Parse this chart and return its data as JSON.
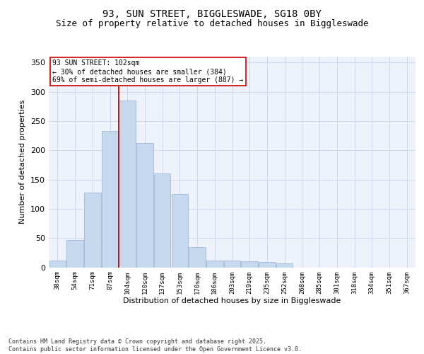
{
  "title1": "93, SUN STREET, BIGGLESWADE, SG18 0BY",
  "title2": "Size of property relative to detached houses in Biggleswade",
  "xlabel": "Distribution of detached houses by size in Biggleswade",
  "ylabel": "Number of detached properties",
  "bar_labels": [
    "38sqm",
    "54sqm",
    "71sqm",
    "87sqm",
    "104sqm",
    "120sqm",
    "137sqm",
    "153sqm",
    "170sqm",
    "186sqm",
    "203sqm",
    "219sqm",
    "235sqm",
    "252sqm",
    "268sqm",
    "285sqm",
    "301sqm",
    "318sqm",
    "334sqm",
    "351sqm",
    "367sqm"
  ],
  "bar_values": [
    12,
    47,
    128,
    233,
    285,
    212,
    160,
    125,
    34,
    12,
    11,
    10,
    9,
    7,
    0,
    0,
    0,
    0,
    0,
    0,
    0
  ],
  "bar_color": "#c5d8ed",
  "bar_edgecolor": "#a0b8d8",
  "bg_color": "#eef2fb",
  "grid_color": "#d0d8ee",
  "vline_color": "#cc0000",
  "annotation_text": "93 SUN STREET: 102sqm\n← 30% of detached houses are smaller (384)\n69% of semi-detached houses are larger (887) →",
  "annotation_box_color": "#ffffff",
  "annotation_box_edgecolor": "#cc0000",
  "annotation_fontsize": 7,
  "ylim": [
    0,
    360
  ],
  "yticks": [
    0,
    50,
    100,
    150,
    200,
    250,
    300,
    350
  ],
  "footer": "Contains HM Land Registry data © Crown copyright and database right 2025.\nContains public sector information licensed under the Open Government Licence v3.0.",
  "title1_fontsize": 10,
  "title2_fontsize": 9,
  "xlabel_fontsize": 8,
  "ylabel_fontsize": 8
}
